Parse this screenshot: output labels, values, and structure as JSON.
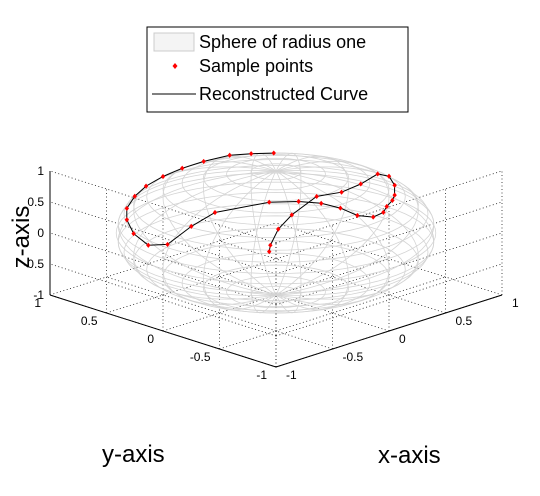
{
  "chart_data": {
    "type": "line",
    "projection": "3d",
    "title": "",
    "xlabel": "x-axis",
    "ylabel": "y-axis",
    "zlabel": "z-axis",
    "xlim": [
      -1,
      1
    ],
    "ylim": [
      -1,
      1
    ],
    "zlim": [
      -1,
      1
    ],
    "grid": true,
    "legend_position": "top-center",
    "x_ticks": [
      "-1",
      "-0.5",
      "0",
      "0.5",
      "1"
    ],
    "y_ticks": [
      "-1",
      "-0.5",
      "0",
      "0.5",
      "1"
    ],
    "z_ticks": [
      "-1",
      "-0.5",
      "0",
      "0.5",
      "1"
    ],
    "legend": [
      {
        "label": "Sphere of radius one",
        "style": "surface"
      },
      {
        "label": "Sample points",
        "style": "marker"
      },
      {
        "label": "Reconstructed Curve",
        "style": "line"
      }
    ],
    "colors": {
      "sphere_mesh": "#d4d4d4",
      "sample_points": "#ff0000",
      "curve": "#000000",
      "grid": "#000000"
    },
    "sphere": {
      "radius": 1,
      "meridians": 20,
      "parallels": 20
    },
    "series": [
      {
        "name": "Sample points",
        "x": [
          0.42,
          0.32,
          0.22,
          0.08,
          -0.05,
          -0.18,
          -0.32,
          -0.45,
          -0.62,
          -0.76,
          -0.88,
          -0.95,
          -0.94,
          -0.8,
          -0.64,
          -0.36,
          -0.22,
          -0.12,
          -0.05,
          0.0,
          0.1,
          0.21,
          0.29,
          0.4,
          0.5,
          0.62,
          0.78,
          0.9,
          0.97,
          0.96,
          0.86,
          0.7,
          0.58,
          0.46,
          0.4
        ],
        "y": [
          0.44,
          0.54,
          0.63,
          0.72,
          0.78,
          0.82,
          0.83,
          0.8,
          0.7,
          0.56,
          0.38,
          0.18,
          0.02,
          -0.05,
          -0.1,
          -0.3,
          -0.42,
          -0.52,
          -0.62,
          -0.72,
          -0.76,
          -0.74,
          -0.69,
          -0.63,
          -0.55,
          -0.43,
          -0.22,
          0.0,
          0.22,
          0.38,
          0.5,
          0.56,
          0.56,
          0.51,
          0.46
        ],
        "z": [
          0.79,
          0.78,
          0.76,
          0.69,
          0.62,
          0.54,
          0.46,
          0.39,
          0.35,
          0.33,
          0.28,
          0.25,
          0.35,
          0.6,
          0.76,
          0.88,
          0.88,
          0.85,
          0.79,
          0.7,
          0.64,
          0.64,
          0.66,
          0.66,
          0.64,
          0.66,
          0.59,
          0.43,
          0.1,
          -0.12,
          -0.2,
          -0.44,
          -0.6,
          -0.76,
          -0.8
        ]
      }
    ]
  }
}
